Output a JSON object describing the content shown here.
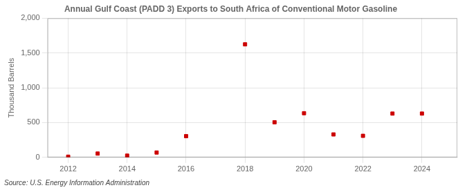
{
  "chart_data": {
    "type": "scatter",
    "title": "Annual Gulf Coast (PADD 3) Exports to South Africa of Conventional Motor Gasoline",
    "ylabel": "Thousand Barrels",
    "annotations": [
      "Source: U.S. Energy Information Administration"
    ],
    "x": [
      2012,
      2013,
      2014,
      2015,
      2016,
      2018,
      2019,
      2020,
      2021,
      2022,
      2023,
      2024
    ],
    "values": [
      10,
      55,
      25,
      70,
      305,
      1625,
      505,
      635,
      330,
      310,
      630,
      630
    ],
    "color": "#cc0000",
    "marker": "square",
    "xlim": [
      2011.3,
      2025.2
    ],
    "xticks": [
      2012,
      2014,
      2016,
      2018,
      2020,
      2022,
      2024
    ],
    "ylim": [
      0,
      2000
    ],
    "yticks": [
      0,
      500,
      {
        "value": 1000,
        "label": "1,000"
      },
      {
        "value": 1500,
        "label": "1,500"
      },
      {
        "value": 2000,
        "label": "2,000"
      }
    ],
    "grid": true
  }
}
